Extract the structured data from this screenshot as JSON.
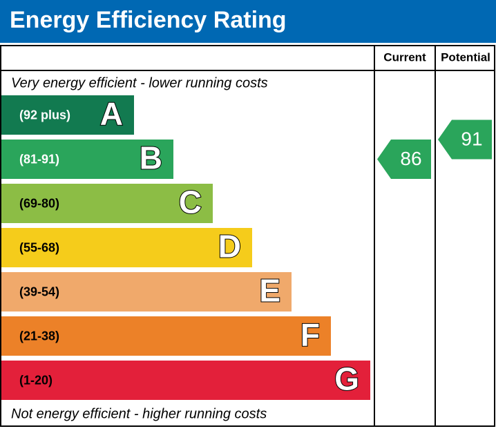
{
  "chart_data": {
    "type": "epc",
    "title": "Energy Efficiency Rating",
    "columns": [
      "Current",
      "Potential"
    ],
    "top_note": "Very energy efficient - lower running costs",
    "bottom_note": "Not energy efficient - higher running costs",
    "bands": [
      {
        "range": "(92 plus)",
        "letter": "A",
        "color": "#127a50",
        "text_color": "#ffffff"
      },
      {
        "range": "(81-91)",
        "letter": "B",
        "color": "#2aa55b",
        "text_color": "#ffffff"
      },
      {
        "range": "(69-80)",
        "letter": "C",
        "color": "#8cbd45",
        "text_color": "#000000"
      },
      {
        "range": "(55-68)",
        "letter": "D",
        "color": "#f5cc1b",
        "text_color": "#000000"
      },
      {
        "range": "(39-54)",
        "letter": "E",
        "color": "#f0a96b",
        "text_color": "#000000"
      },
      {
        "range": "(21-38)",
        "letter": "F",
        "color": "#ec8128",
        "text_color": "#000000"
      },
      {
        "range": "(1-20)",
        "letter": "G",
        "color": "#e3203a",
        "text_color": "#000000"
      }
    ],
    "values": [
      86,
      91
    ]
  }
}
